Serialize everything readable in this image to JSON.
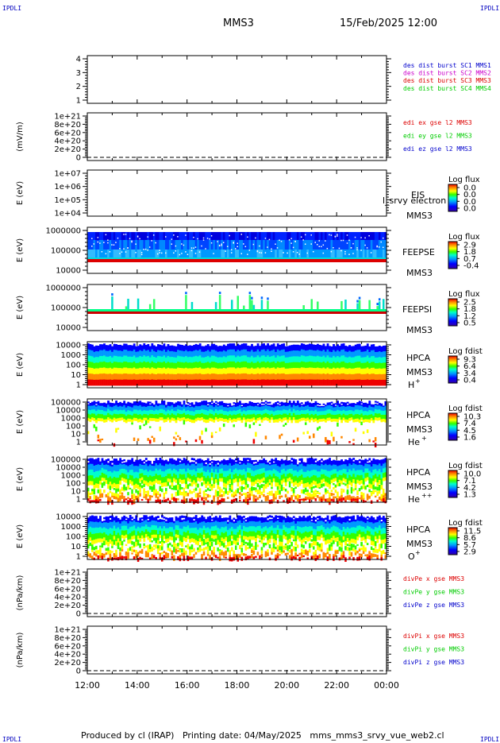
{
  "header": {
    "corner_label": "IPDLI",
    "spacecraft": "MMS3",
    "datetime": "15/Feb/2025 12:00"
  },
  "footer": {
    "text": "Produced by cl (IRAP)   Printing date: 04/May/2025   mms_mms3_srvy_vue_web2.cl"
  },
  "colors": {
    "ascii_blue": "#0000c0",
    "frame": "#000000",
    "s1": "#0000cc",
    "s2": "#cc00cc",
    "s3": "#dd0000",
    "s4": "#00cc00"
  },
  "chart_data": [
    {
      "id": "burst",
      "type": "line",
      "ylabel": "",
      "yticks": [
        "4",
        "3",
        "2",
        "1"
      ],
      "legend": [
        {
          "text": "des dist burst SC1 MMS1",
          "color": "#0000cc"
        },
        {
          "text": "des dist burst SC2 MMS2",
          "color": "#cc00cc"
        },
        {
          "text": "des dist burst SC3 MMS3",
          "color": "#dd0000"
        },
        {
          "text": "des dist burst SC4 MMS4",
          "color": "#00cc00"
        }
      ]
    },
    {
      "id": "edi",
      "type": "line",
      "ylabel": "(mV/m)",
      "yticks": [
        "1e+21",
        "8e+20",
        "6e+20",
        "4e+20",
        "2e+20",
        "0"
      ],
      "zero_dashed": true,
      "legend": [
        {
          "text": "edi ex gse l2 MMS3",
          "color": "#dd0000"
        },
        {
          "text": "edi ey gse l2 MMS3",
          "color": "#00cc00"
        },
        {
          "text": "edi ez gse l2 MMS3",
          "color": "#0000cc"
        }
      ]
    },
    {
      "id": "eis",
      "type": "heatmap",
      "ylabel": "E (eV)",
      "yticks": [
        "1e+07",
        "1e+06",
        "1e+05",
        "1e+04"
      ],
      "name": "EIS",
      "overlay": "l_srvy electron to",
      "instrument": "MMS3",
      "cbar_title": "Log flux",
      "cbar_ticks": [
        "0.0",
        "0.0",
        "0.0",
        "0.0"
      ]
    },
    {
      "id": "feepse",
      "type": "heatmap",
      "ylabel": "E (eV)",
      "yticks": [
        "1000000",
        "100000",
        "10000"
      ],
      "name": "FEEPSE",
      "instrument": "MMS3",
      "cbar_title": "Log flux",
      "cbar_ticks": [
        "2.9",
        "1.8",
        "0.7",
        "-0.4"
      ]
    },
    {
      "id": "feepsi",
      "type": "heatmap",
      "ylabel": "E (eV)",
      "yticks": [
        "1000000",
        "100000",
        "10000"
      ],
      "name": "FEEPSI",
      "instrument": "MMS3",
      "cbar_title": "Log flux",
      "cbar_ticks": [
        "2.5",
        "1.8",
        "1.2",
        "0.5"
      ]
    },
    {
      "id": "hpca_h",
      "type": "heatmap",
      "ylabel": "E (eV)",
      "yticks": [
        "10000",
        "1000",
        "100",
        "10",
        "1"
      ],
      "name": "HPCA",
      "instrument": "MMS3",
      "species": "H",
      "charge": "+",
      "cbar_title": "Log fdist",
      "cbar_ticks": [
        "9.3",
        "6.4",
        "3.4",
        "0.4"
      ]
    },
    {
      "id": "hpca_he",
      "type": "heatmap",
      "ylabel": "E (eV)",
      "yticks": [
        "100000",
        "10000",
        "1000",
        "100",
        "10",
        "1"
      ],
      "name": "HPCA",
      "instrument": "MMS3",
      "species": "He",
      "charge": "+",
      "cbar_title": "Log fdist",
      "cbar_ticks": [
        "10.3",
        "7.4",
        "4.5",
        "1.6"
      ]
    },
    {
      "id": "hpca_he2",
      "type": "heatmap",
      "ylabel": "E (eV)",
      "yticks": [
        "100000",
        "10000",
        "1000",
        "100",
        "10",
        "1"
      ],
      "name": "HPCA",
      "instrument": "MMS3",
      "species": "He",
      "charge": "++",
      "cbar_title": "Log fdist",
      "cbar_ticks": [
        "10.0",
        "7.1",
        "4.2",
        "1.3"
      ]
    },
    {
      "id": "hpca_o",
      "type": "heatmap",
      "ylabel": "E (eV)",
      "yticks": [
        "10000",
        "1000",
        "100",
        "10",
        "1"
      ],
      "name": "HPCA",
      "instrument": "MMS3",
      "species": "O",
      "charge": "+",
      "cbar_title": "Log fdist",
      "cbar_ticks": [
        "11.5",
        "8.6",
        "5.7",
        "2.9"
      ]
    },
    {
      "id": "divpe",
      "type": "line",
      "ylabel": "(nPa/km)",
      "yticks": [
        "1e+21",
        "8e+20",
        "6e+20",
        "4e+20",
        "2e+20",
        "0"
      ],
      "zero_dashed": true,
      "legend": [
        {
          "text": "divPe x gse MMS3",
          "color": "#dd0000"
        },
        {
          "text": "divPe y gse MMS3",
          "color": "#00cc00"
        },
        {
          "text": "divPe z gse MMS3",
          "color": "#0000cc"
        }
      ]
    },
    {
      "id": "divpi",
      "type": "line",
      "ylabel": "(nPa/km)",
      "yticks": [
        "1e+21",
        "8e+20",
        "6e+20",
        "4e+20",
        "2e+20",
        "0"
      ],
      "zero_dashed": true,
      "legend": [
        {
          "text": "divPi x gse MMS3",
          "color": "#dd0000"
        },
        {
          "text": "divPi y gse MMS3",
          "color": "#00cc00"
        },
        {
          "text": "divPi z gse MMS3",
          "color": "#0000cc"
        }
      ]
    }
  ],
  "time_axis": {
    "ticks": [
      "12:00",
      "14:00",
      "16:00",
      "18:00",
      "20:00",
      "22:00",
      "00:00"
    ]
  }
}
